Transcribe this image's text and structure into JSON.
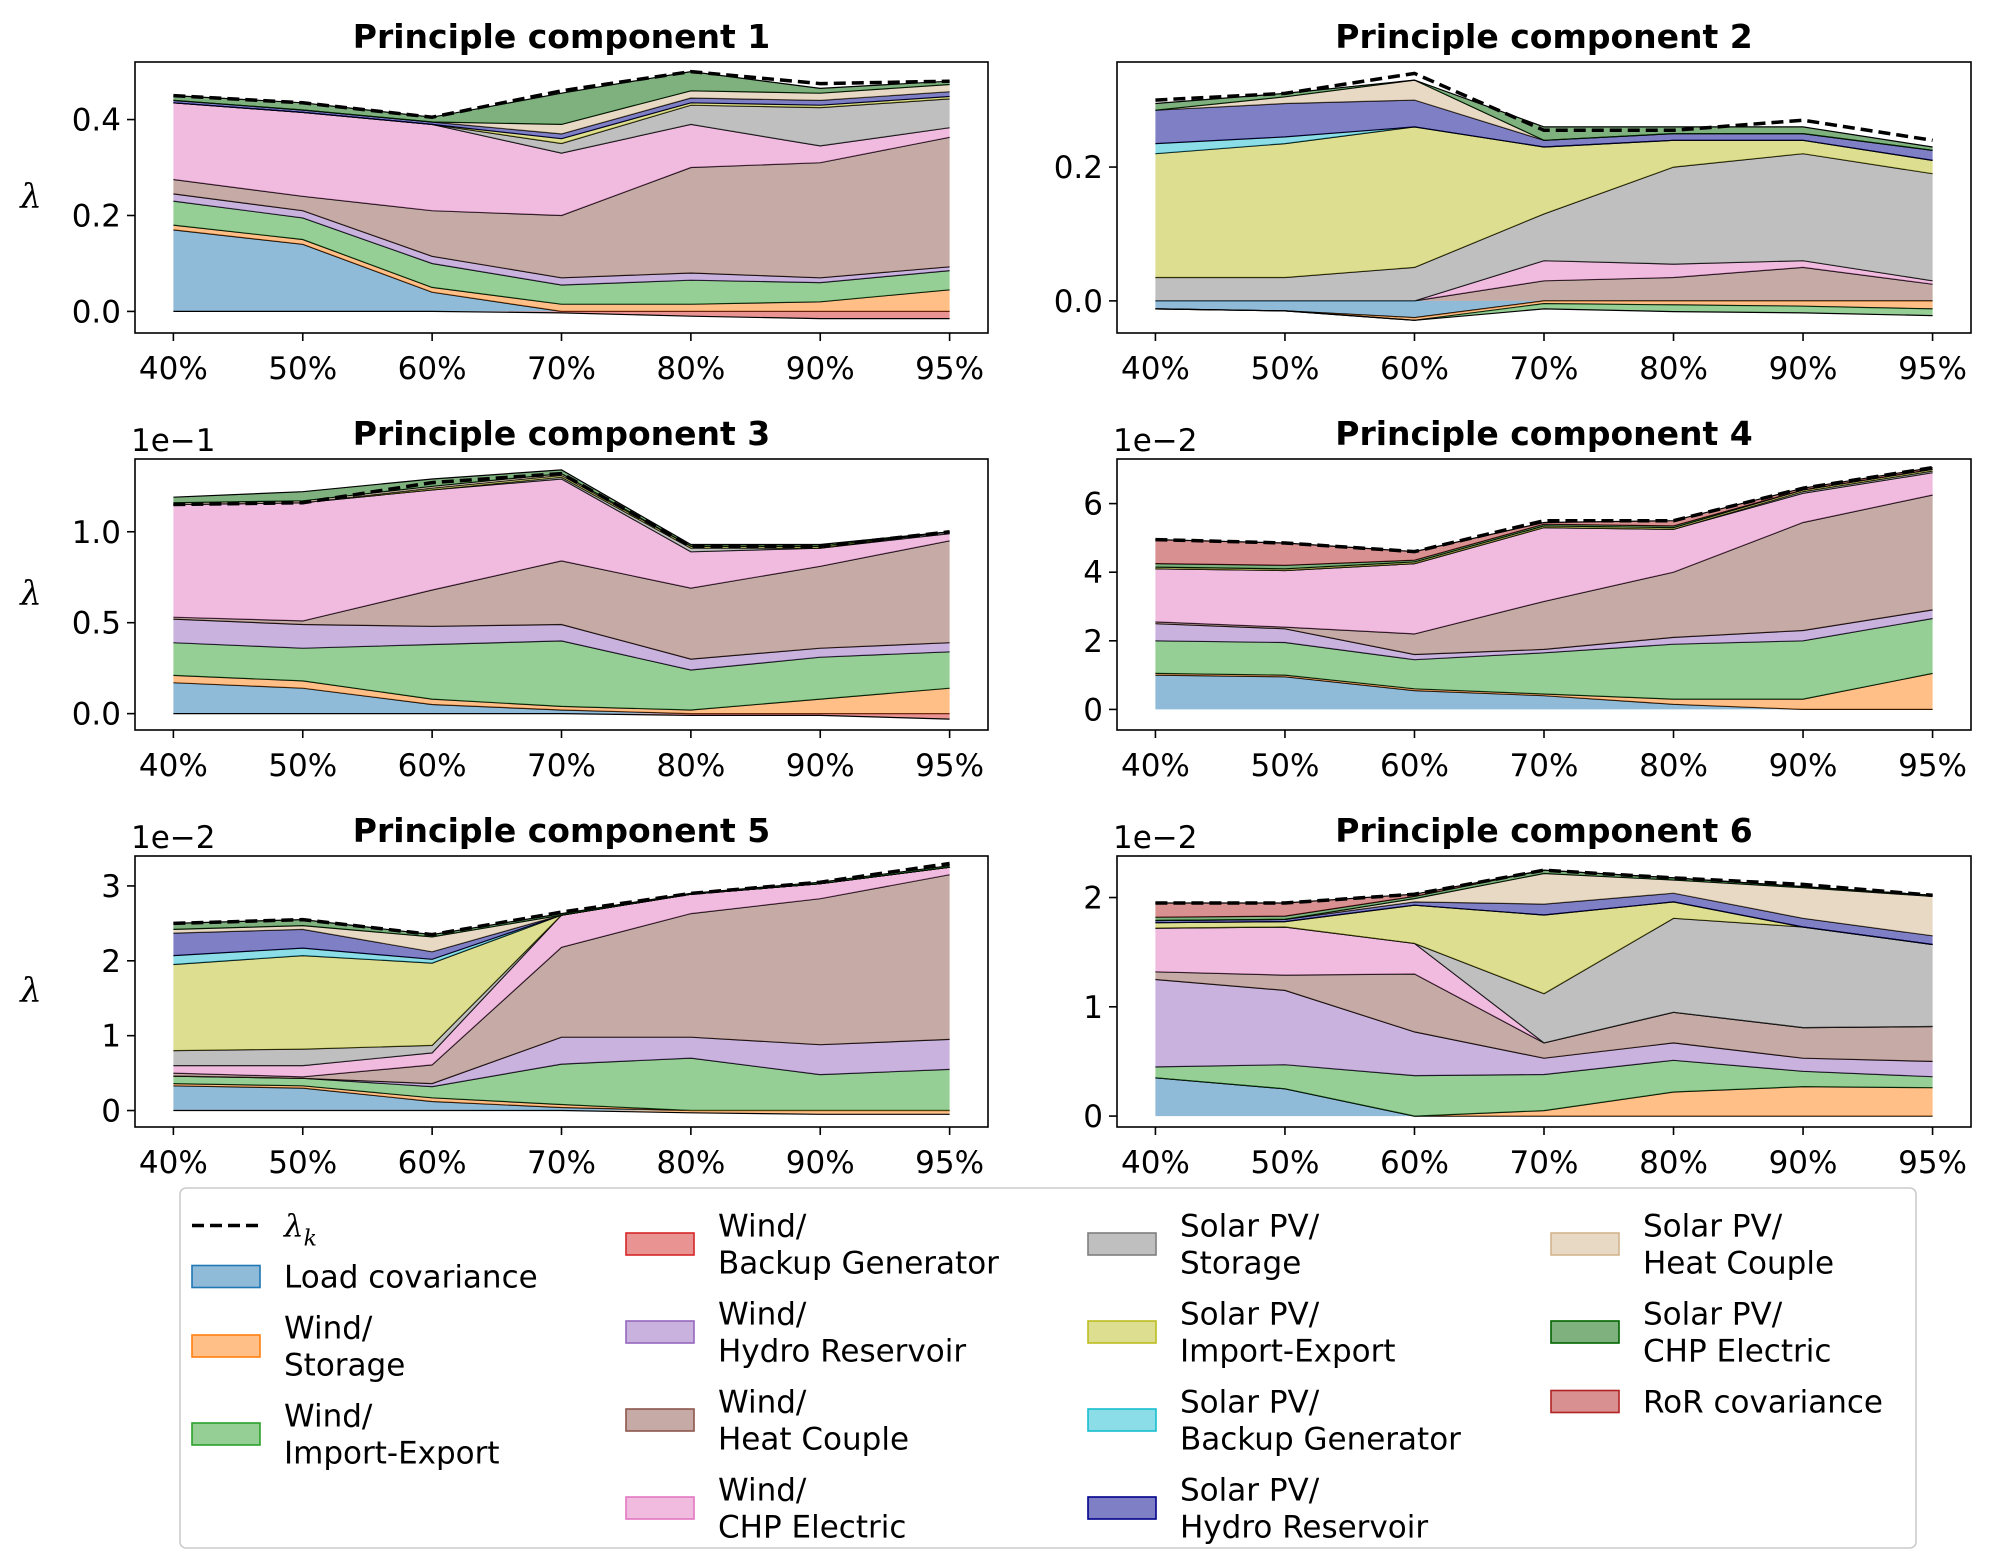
{
  "chart_data": {
    "type": "area",
    "x_labels": [
      "40%",
      "50%",
      "60%",
      "70%",
      "80%",
      "90%",
      "95%"
    ],
    "legend": {
      "placement": "bottom",
      "lambda_label": "λ",
      "lambda_sub": "k",
      "series": [
        {
          "key": "load",
          "lines": [
            "Load covariance"
          ],
          "color": "#1f77b4"
        },
        {
          "key": "w_sto",
          "lines": [
            "Wind/",
            "Storage"
          ],
          "color": "#ff7f0e"
        },
        {
          "key": "w_ie",
          "lines": [
            "Wind/",
            "Import-Export"
          ],
          "color": "#2ca02c"
        },
        {
          "key": "w_bg",
          "lines": [
            "Wind/",
            "Backup Generator"
          ],
          "color": "#d62728"
        },
        {
          "key": "w_hr",
          "lines": [
            "Wind/",
            "Hydro Reservoir"
          ],
          "color": "#9467bd"
        },
        {
          "key": "w_hc",
          "lines": [
            "Wind/",
            "Heat Couple"
          ],
          "color": "#8c564b"
        },
        {
          "key": "w_chp",
          "lines": [
            "Wind/",
            "CHP Electric"
          ],
          "color": "#e377c2"
        },
        {
          "key": "s_sto",
          "lines": [
            "Solar PV/",
            "Storage"
          ],
          "color": "#7f7f7f"
        },
        {
          "key": "s_ie",
          "lines": [
            "Solar PV/",
            "Import-Export"
          ],
          "color": "#bcbd22"
        },
        {
          "key": "s_bg",
          "lines": [
            "Solar PV/",
            "Backup Generator"
          ],
          "color": "#17becf"
        },
        {
          "key": "s_hr",
          "lines": [
            "Solar PV/",
            "Hydro Reservoir"
          ],
          "color": "#00008b"
        },
        {
          "key": "s_hc",
          "lines": [
            "Solar PV/",
            "Heat Couple"
          ],
          "color": "#d2b48c"
        },
        {
          "key": "s_chp",
          "lines": [
            "Solar PV/",
            "CHP Electric"
          ],
          "color": "#006400"
        },
        {
          "key": "ror",
          "lines": [
            "RoR covariance"
          ],
          "color": "#b22222"
        }
      ]
    },
    "panels": [
      {
        "title": "Principle component 1",
        "ylabel": "λ",
        "scale_label": "",
        "ylim": [
          -0.045,
          0.52
        ],
        "yticks": [
          0.0,
          0.2,
          0.4
        ],
        "ytick_labels": [
          "0.0",
          "0.2",
          "0.4"
        ],
        "lambda": [
          0.45,
          0.435,
          0.405,
          0.46,
          0.5,
          0.475,
          0.48
        ],
        "stacks": {
          "pos": {
            "load": [
              0.17,
              0.14,
              0.04,
              0.0,
              0.0,
              0.0,
              0.0
            ],
            "w_sto": [
              0.01,
              0.01,
              0.01,
              0.015,
              0.015,
              0.02,
              0.045
            ],
            "w_ie": [
              0.05,
              0.045,
              0.05,
              0.04,
              0.05,
              0.04,
              0.04
            ],
            "w_hr": [
              0.015,
              0.015,
              0.015,
              0.015,
              0.015,
              0.01,
              0.008
            ],
            "w_hc": [
              0.03,
              0.03,
              0.095,
              0.13,
              0.22,
              0.24,
              0.27
            ],
            "w_chp": [
              0.16,
              0.175,
              0.18,
              0.13,
              0.09,
              0.035,
              0.02
            ],
            "s_sto": [
              0.0,
              0.0,
              0.0,
              0.02,
              0.04,
              0.08,
              0.06
            ],
            "s_hr": [
              0.005,
              0.005,
              0.005,
              0.01,
              0.01,
              0.01,
              0.01
            ],
            "s_hc": [
              0.0,
              0.0,
              0.0,
              0.02,
              0.015,
              0.015,
              0.015
            ],
            "s_ie": [
              0.0,
              0.0,
              0.0,
              0.01,
              0.005,
              0.005,
              0.005
            ],
            "s_chp": [
              0.01,
              0.015,
              0.01,
              0.065,
              0.04,
              0.01,
              0.007
            ]
          },
          "neg": {
            "w_bg": [
              0.0,
              0.0,
              0.0,
              -0.003,
              -0.01,
              -0.015,
              -0.015
            ]
          }
        }
      },
      {
        "title": "Principle component 2",
        "ylabel": "",
        "scale_label": "",
        "ylim": [
          -0.048,
          0.357
        ],
        "yticks": [
          0.0,
          0.2
        ],
        "ytick_labels": [
          "0.0",
          "0.2"
        ],
        "lambda": [
          0.3,
          0.31,
          0.34,
          0.255,
          0.255,
          0.27,
          0.24
        ],
        "stacks": {
          "pos": {
            "w_chp": [
              0.0,
              0.0,
              0.0,
              0.03,
              0.02,
              0.01,
              0.005
            ],
            "w_hc": [
              0.0,
              0.0,
              0.0,
              0.03,
              0.035,
              0.05,
              0.025
            ],
            "s_sto": [
              0.035,
              0.035,
              0.05,
              0.07,
              0.145,
              0.16,
              0.16
            ],
            "s_ie": [
              0.185,
              0.2,
              0.21,
              0.1,
              0.04,
              0.02,
              0.02
            ],
            "s_bg": [
              0.015,
              0.01,
              0.0,
              0.0,
              0.0,
              0.0,
              0.0
            ],
            "s_hr": [
              0.05,
              0.05,
              0.04,
              0.01,
              0.01,
              0.01,
              0.015
            ],
            "s_hc": [
              0.0,
              0.01,
              0.03,
              0.0,
              0.0,
              0.0,
              0.0
            ],
            "s_chp": [
              0.01,
              0.005,
              0.0,
              0.02,
              0.01,
              0.01,
              0.005
            ]
          },
          "neg": {
            "load": [
              -0.012,
              -0.015,
              -0.025,
              0.0,
              0.0,
              0.0,
              0.0
            ],
            "w_ie": [
              0.0,
              0.0,
              0.0,
              -0.008,
              -0.01,
              -0.01,
              -0.01
            ],
            "w_sto": [
              0.0,
              0.0,
              -0.004,
              -0.004,
              -0.006,
              -0.008,
              -0.012
            ]
          }
        }
      },
      {
        "title": "Principle component 3",
        "ylabel": "λ",
        "scale_label": "1e−1",
        "ylim": [
          -0.09,
          1.4
        ],
        "yticks": [
          0.0,
          0.5,
          1.0
        ],
        "ytick_labels": [
          "0.0",
          "0.5",
          "1.0"
        ],
        "lambda": [
          1.15,
          1.16,
          1.27,
          1.32,
          0.92,
          0.92,
          1.0
        ],
        "stacks": {
          "pos": {
            "load": [
              0.17,
              0.14,
              0.05,
              0.02,
              0.0,
              0.0,
              0.0
            ],
            "w_sto": [
              0.04,
              0.04,
              0.03,
              0.02,
              0.02,
              0.08,
              0.14
            ],
            "w_ie": [
              0.18,
              0.18,
              0.3,
              0.36,
              0.22,
              0.23,
              0.2
            ],
            "w_hr": [
              0.13,
              0.13,
              0.1,
              0.09,
              0.06,
              0.05,
              0.05
            ],
            "w_hc": [
              0.01,
              0.02,
              0.2,
              0.35,
              0.39,
              0.45,
              0.56
            ],
            "w_chp": [
              0.62,
              0.65,
              0.55,
              0.45,
              0.2,
              0.1,
              0.04
            ],
            "s_sto": [
              0.0,
              0.0,
              0.0,
              0.01,
              0.02,
              0.0,
              0.01
            ],
            "s_ie": [
              0.0,
              0.0,
              0.01,
              0.01,
              0.01,
              0.01,
              0.0
            ],
            "s_hc": [
              0.01,
              0.01,
              0.01,
              0.01,
              0.0,
              0.0,
              0.0
            ],
            "s_chp": [
              0.03,
              0.05,
              0.04,
              0.02,
              0.01,
              0.01,
              0.0
            ]
          },
          "neg": {
            "w_bg": [
              0.0,
              0.0,
              0.0,
              0.0,
              -0.01,
              -0.01,
              -0.03
            ]
          }
        }
      },
      {
        "title": "Principle component 4",
        "ylabel": "",
        "scale_label": "1e−2",
        "ylim": [
          -0.6,
          7.3
        ],
        "yticks": [
          0,
          2,
          4,
          6
        ],
        "ytick_labels": [
          "0",
          "2",
          "4",
          "6"
        ],
        "lambda": [
          4.95,
          4.85,
          4.6,
          5.5,
          5.5,
          6.45,
          7.05
        ],
        "stacks": {
          "pos": {
            "load": [
              1.0,
              0.95,
              0.55,
              0.4,
              0.15,
              0.0,
              0.0
            ],
            "w_sto": [
              0.05,
              0.05,
              0.05,
              0.05,
              0.15,
              0.3,
              1.05
            ],
            "w_ie": [
              0.95,
              0.95,
              0.85,
              1.2,
              1.6,
              1.7,
              1.6
            ],
            "w_hr": [
              0.5,
              0.4,
              0.15,
              0.1,
              0.2,
              0.3,
              0.25
            ],
            "w_hc": [
              0.05,
              0.05,
              0.6,
              1.4,
              1.9,
              3.15,
              3.35
            ],
            "w_chp": [
              1.55,
              1.65,
              2.05,
              2.15,
              1.25,
              0.85,
              0.65
            ],
            "s_sto": [
              0.0,
              0.0,
              0.0,
              0.0,
              0.0,
              0.05,
              0.05
            ],
            "s_ie": [
              0.05,
              0.05,
              0.05,
              0.05,
              0.05,
              0.05,
              0.05
            ],
            "s_chp": [
              0.1,
              0.1,
              0.05,
              0.05,
              0.05,
              0.0,
              0.0
            ],
            "ror": [
              0.7,
              0.65,
              0.25,
              0.05,
              0.15,
              0.05,
              0.05
            ]
          },
          "neg": {}
        }
      },
      {
        "title": "Principle component 5",
        "ylabel": "λ",
        "scale_label": "1e−2",
        "ylim": [
          -0.22,
          3.4
        ],
        "yticks": [
          0,
          1,
          2,
          3
        ],
        "ytick_labels": [
          "0",
          "1",
          "2",
          "3"
        ],
        "lambda": [
          2.5,
          2.55,
          2.35,
          2.65,
          2.9,
          3.05,
          3.3
        ],
        "stacks": {
          "pos": {
            "load": [
              0.33,
              0.3,
              0.12,
              0.04,
              0.0,
              0.0,
              0.0
            ],
            "w_sto": [
              0.03,
              0.03,
              0.05,
              0.04,
              0.0,
              0.0,
              0.0
            ],
            "w_ie": [
              0.1,
              0.1,
              0.15,
              0.54,
              0.7,
              0.48,
              0.55
            ],
            "w_hr": [
              0.0,
              0.0,
              0.04,
              0.36,
              0.28,
              0.4,
              0.4
            ],
            "w_hc": [
              0.04,
              0.02,
              0.25,
              1.2,
              1.65,
              1.95,
              2.2
            ],
            "w_chp": [
              0.1,
              0.15,
              0.16,
              0.43,
              0.26,
              0.2,
              0.1
            ],
            "s_sto": [
              0.2,
              0.22,
              0.1,
              0.0,
              0.0,
              0.0,
              0.0
            ],
            "s_ie": [
              1.15,
              1.25,
              1.1,
              0.0,
              0.0,
              0.0,
              0.0
            ],
            "s_bg": [
              0.12,
              0.1,
              0.05,
              0.0,
              0.0,
              0.0,
              0.0
            ],
            "s_hr": [
              0.3,
              0.25,
              0.1,
              0.0,
              0.0,
              0.0,
              0.0
            ],
            "s_hc": [
              0.05,
              0.05,
              0.2,
              0.0,
              0.0,
              0.0,
              0.0
            ],
            "s_chp": [
              0.08,
              0.08,
              0.03,
              0.02,
              0.01,
              0.02,
              0.02
            ]
          },
          "neg": {
            "w_sto": [
              0.0,
              0.0,
              0.0,
              0.0,
              -0.03,
              -0.05,
              -0.05
            ]
          }
        }
      },
      {
        "title": "Principle component 6",
        "ylabel": "",
        "scale_label": "1e−2",
        "ylim": [
          -0.1,
          2.38
        ],
        "yticks": [
          0,
          1,
          2
        ],
        "ytick_labels": [
          "0",
          "1",
          "2"
        ],
        "lambda": [
          1.95,
          1.95,
          2.03,
          2.25,
          2.18,
          2.12,
          2.02
        ],
        "stacks": {
          "pos": {
            "load": [
              0.35,
              0.25,
              0.0,
              0.0,
              0.0,
              0.0,
              0.0
            ],
            "w_sto": [
              0.0,
              0.0,
              0.0,
              0.05,
              0.22,
              0.27,
              0.26
            ],
            "w_ie": [
              0.1,
              0.22,
              0.37,
              0.33,
              0.29,
              0.14,
              0.1
            ],
            "w_hr": [
              0.8,
              0.68,
              0.4,
              0.15,
              0.16,
              0.12,
              0.14
            ],
            "w_hc": [
              0.07,
              0.14,
              0.53,
              0.14,
              0.28,
              0.28,
              0.32
            ],
            "w_chp": [
              0.4,
              0.44,
              0.28,
              0.0,
              0.0,
              0.0,
              0.0
            ],
            "s_sto": [
              0.0,
              0.0,
              0.0,
              0.45,
              0.86,
              0.92,
              0.75
            ],
            "s_ie": [
              0.05,
              0.05,
              0.35,
              0.72,
              0.15,
              0.0,
              0.0
            ],
            "s_bg": [
              0.0,
              0.0,
              0.0,
              0.0,
              0.0,
              0.0,
              0.0
            ],
            "s_hr": [
              0.02,
              0.02,
              0.03,
              0.1,
              0.08,
              0.08,
              0.08
            ],
            "s_hc": [
              0.0,
              0.0,
              0.03,
              0.28,
              0.12,
              0.28,
              0.36
            ],
            "s_chp": [
              0.03,
              0.03,
              0.02,
              0.03,
              0.02,
              0.01,
              0.01
            ],
            "ror": [
              0.13,
              0.12,
              0.02,
              0.0,
              0.0,
              0.0,
              0.0
            ]
          },
          "neg": {}
        }
      }
    ]
  }
}
